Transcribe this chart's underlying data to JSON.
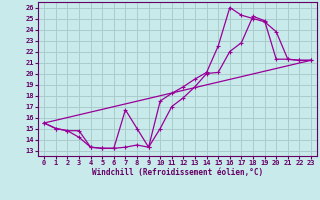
{
  "xlabel": "Windchill (Refroidissement éolien,°C)",
  "background_color": "#c8eaea",
  "grid_color": "#aacccc",
  "line_color": "#990099",
  "xlim": [
    -0.5,
    23.5
  ],
  "ylim": [
    12.5,
    26.5
  ],
  "xticks": [
    0,
    1,
    2,
    3,
    4,
    5,
    6,
    7,
    8,
    9,
    10,
    11,
    12,
    13,
    14,
    15,
    16,
    17,
    18,
    19,
    20,
    21,
    22,
    23
  ],
  "yticks": [
    13,
    14,
    15,
    16,
    17,
    18,
    19,
    20,
    21,
    22,
    23,
    24,
    25,
    26
  ],
  "line1_x": [
    0,
    1,
    2,
    3,
    4,
    5,
    6,
    7,
    8,
    9,
    10,
    11,
    12,
    13,
    14,
    15,
    16,
    17,
    18,
    19,
    20,
    21,
    22,
    23
  ],
  "line1_y": [
    15.5,
    15.0,
    14.8,
    14.2,
    13.3,
    13.2,
    13.2,
    16.7,
    15.0,
    13.3,
    17.5,
    18.2,
    18.8,
    19.5,
    20.1,
    22.5,
    26.0,
    25.3,
    25.0,
    24.7,
    23.8,
    21.3,
    21.2,
    21.2
  ],
  "line2_x": [
    0,
    1,
    2,
    3,
    4,
    5,
    6,
    7,
    8,
    9,
    10,
    11,
    12,
    13,
    14,
    15,
    16,
    17,
    18,
    19,
    20,
    21,
    22,
    23
  ],
  "line2_y": [
    15.5,
    15.0,
    14.8,
    14.8,
    13.3,
    13.2,
    13.2,
    13.3,
    13.5,
    13.3,
    15.0,
    17.0,
    17.8,
    18.8,
    20.0,
    20.1,
    22.0,
    22.8,
    25.2,
    24.8,
    21.3,
    21.3,
    21.2,
    21.2
  ],
  "line3_x": [
    0,
    23
  ],
  "line3_y": [
    15.5,
    21.2
  ]
}
